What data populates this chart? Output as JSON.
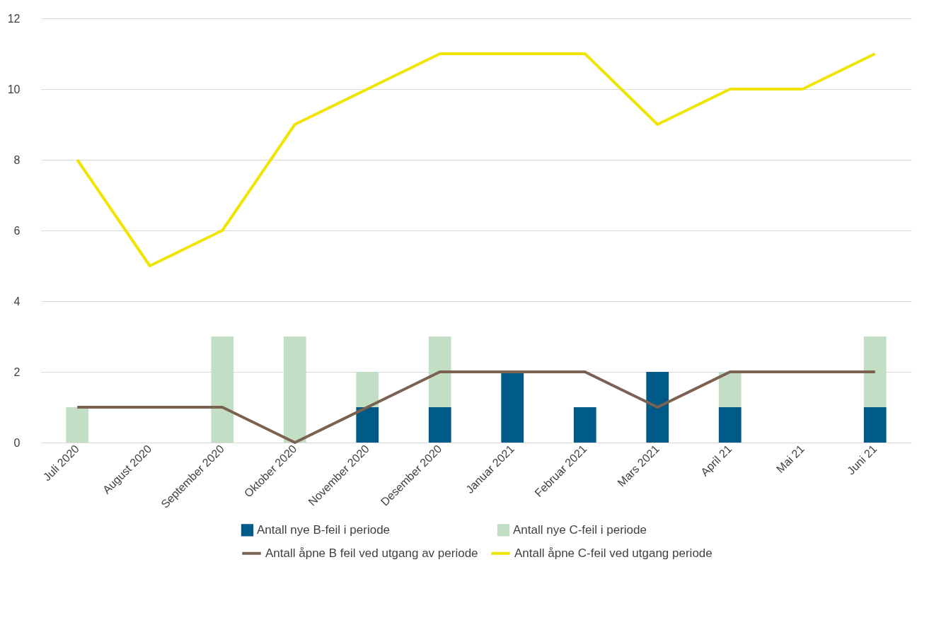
{
  "chart_data": {
    "type": "bar",
    "stacked": true,
    "categories": [
      "Juli 2020",
      "August 2020",
      "September 2020",
      "Oktober 2020",
      "November 2020",
      "Desember 2020",
      "Januar 2021",
      "Februar 2021",
      "Mars 2021",
      "April 21",
      "Mai 21",
      "Juni 21"
    ],
    "series": [
      {
        "name": "Antall nye B-feil i periode",
        "color": "#005a87",
        "values": [
          0,
          0,
          0,
          0,
          1,
          1,
          2,
          1,
          2,
          1,
          0,
          1
        ]
      },
      {
        "name": "Antall nye C-feil i periode",
        "color": "#c2dfc5",
        "values": [
          1,
          0,
          3,
          3,
          1,
          2,
          0,
          0,
          0,
          1,
          0,
          2
        ]
      },
      {
        "name": "Antall åpne B feil ved utgang av periode",
        "type": "line",
        "color": "#7b6150",
        "values": [
          1,
          1,
          1,
          0,
          1,
          2,
          2,
          2,
          1,
          2,
          2,
          2
        ]
      },
      {
        "name": "Antall åpne C-feil ved utgang periode",
        "type": "line",
        "color": "#f0e500",
        "values": [
          8,
          5,
          6,
          9,
          10,
          11,
          11,
          11,
          9,
          10,
          10,
          11
        ]
      }
    ],
    "ylim": [
      0,
      12
    ],
    "yticks": [
      0,
      2,
      4,
      6,
      8,
      10,
      12
    ],
    "grid": "y",
    "legend": "bottom",
    "line_style": "solid"
  }
}
